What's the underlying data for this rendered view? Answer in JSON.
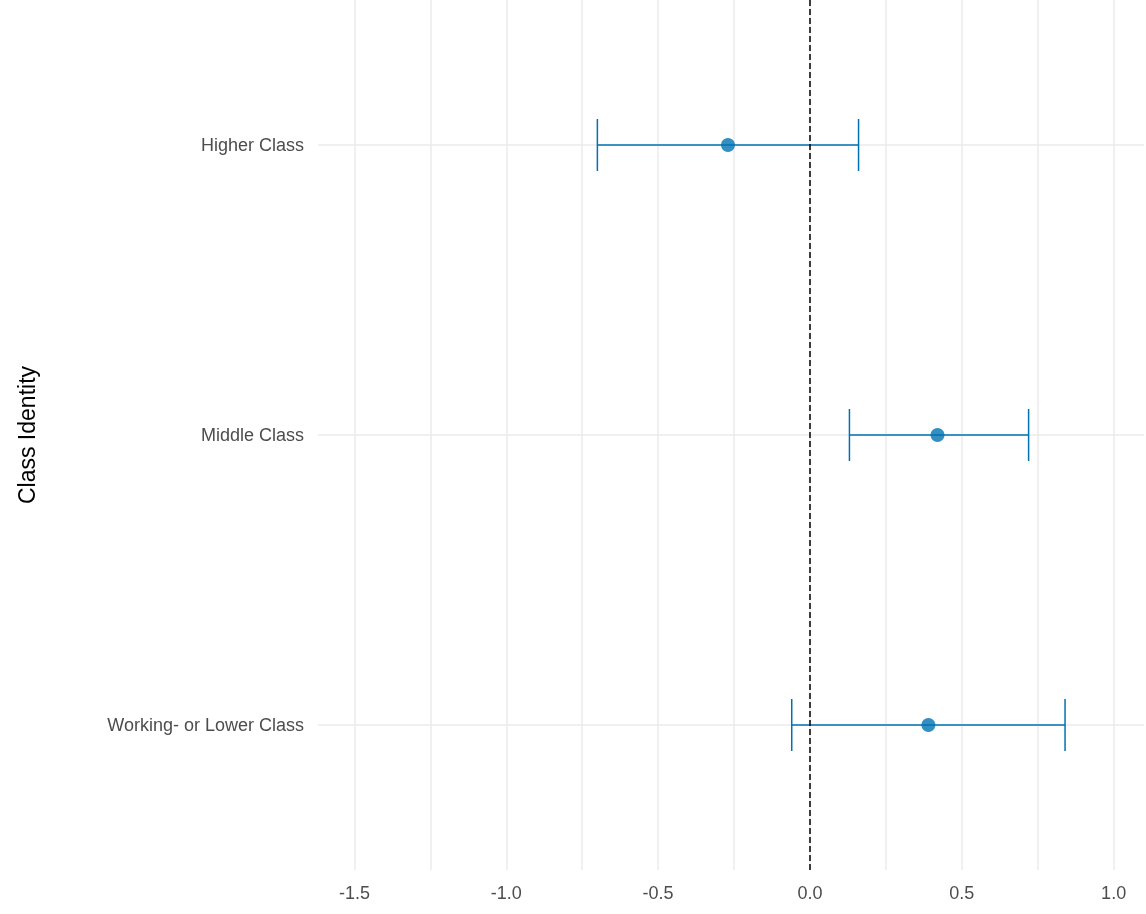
{
  "chart_data": {
    "type": "scatter",
    "orientation": "horizontal",
    "ylabel": "Class Identity",
    "categories": [
      "Higher Class",
      "Middle Class",
      "Working- or Lower Class"
    ],
    "values": [
      -0.27,
      0.42,
      0.39
    ],
    "errors": [
      [
        -0.7,
        0.16
      ],
      [
        0.13,
        0.72
      ],
      [
        -0.06,
        0.84
      ]
    ],
    "color": "#0072b2",
    "marker": "circle",
    "xlim": [
      -1.62,
      1.1
    ],
    "xticks": [
      {
        "value": -1.5,
        "label": "-1.5"
      },
      {
        "value": -1.25,
        "label": null
      },
      {
        "value": -1,
        "label": "-1.0"
      },
      {
        "value": -0.75,
        "label": null
      },
      {
        "value": -0.5,
        "label": "-0.5"
      },
      {
        "value": -0.25,
        "label": null
      },
      {
        "value": 0,
        "label": "0.0"
      },
      {
        "value": 0.25,
        "label": null
      },
      {
        "value": 0.5,
        "label": "0.5"
      },
      {
        "value": 0.75,
        "label": null
      },
      {
        "value": 1,
        "label": "1.0"
      }
    ],
    "ref_lines": [
      {
        "axis": "x",
        "value": 0,
        "line_style": "dashed",
        "color": "#000000"
      }
    ],
    "grid": true
  }
}
